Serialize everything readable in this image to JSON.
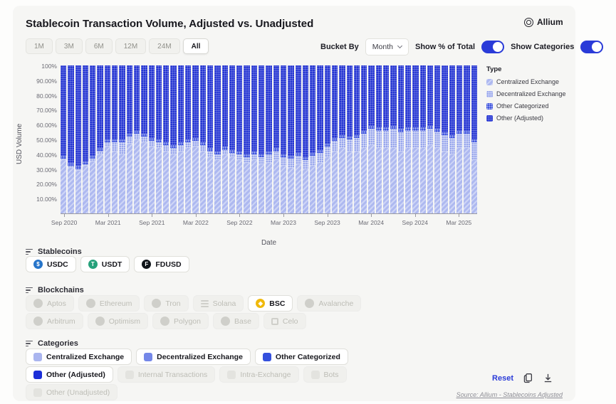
{
  "header": {
    "title": "Stablecoin Transaction Volume, Adjusted vs. Unadjusted",
    "brand": "Allium"
  },
  "controls": {
    "time_buckets": [
      {
        "label": "1M",
        "active": false
      },
      {
        "label": "3M",
        "active": false
      },
      {
        "label": "6M",
        "active": false
      },
      {
        "label": "12M",
        "active": false
      },
      {
        "label": "24M",
        "active": false
      },
      {
        "label": "All",
        "active": true
      }
    ],
    "bucket_by_label": "Bucket By",
    "bucket_by_value": "Month",
    "show_percent_label": "Show % of Total",
    "show_percent_on": true,
    "show_categories_label": "Show Categories",
    "show_categories_on": true,
    "accent_color": "#2a3bd8"
  },
  "chart_data": {
    "type": "bar",
    "stacked": true,
    "unit": "percent_of_total",
    "ylabel": "USD Volume",
    "xlabel": "Date",
    "ylim": [
      0,
      100
    ],
    "grid": false,
    "y_tick_labels": [
      "100%",
      "90.00%",
      "80.00%",
      "70.00%",
      "60.00%",
      "50.00%",
      "40.00%",
      "30.00%",
      "20.00%",
      "10.00%"
    ],
    "x_tick_labels": [
      "Sep 2020",
      "Mar 2021",
      "Sep 2021",
      "Mar 2022",
      "Sep 2022",
      "Mar 2023",
      "Sep 2023",
      "Mar 2024",
      "Sep 2024",
      "Mar 2025"
    ],
    "x_tick_indices": [
      0,
      6,
      12,
      18,
      24,
      30,
      36,
      42,
      48,
      54
    ],
    "categories": [
      "Sep 2020",
      "Oct 2020",
      "Nov 2020",
      "Dec 2020",
      "Jan 2021",
      "Feb 2021",
      "Mar 2021",
      "Apr 2021",
      "May 2021",
      "Jun 2021",
      "Jul 2021",
      "Aug 2021",
      "Sep 2021",
      "Oct 2021",
      "Nov 2021",
      "Dec 2021",
      "Jan 2022",
      "Feb 2022",
      "Mar 2022",
      "Apr 2022",
      "May 2022",
      "Jun 2022",
      "Jul 2022",
      "Aug 2022",
      "Sep 2022",
      "Oct 2022",
      "Nov 2022",
      "Dec 2022",
      "Jan 2023",
      "Feb 2023",
      "Mar 2023",
      "Apr 2023",
      "May 2023",
      "Jun 2023",
      "Jul 2023",
      "Aug 2023",
      "Sep 2023",
      "Oct 2023",
      "Nov 2023",
      "Dec 2023",
      "Jan 2024",
      "Feb 2024",
      "Mar 2024",
      "Apr 2024",
      "May 2024",
      "Jun 2024",
      "Jul 2024",
      "Aug 2024",
      "Sep 2024",
      "Oct 2024",
      "Nov 2024",
      "Dec 2024",
      "Jan 2025",
      "Feb 2025",
      "Mar 2025",
      "Apr 2025",
      "May 2025"
    ],
    "series": [
      {
        "name": "Centralized Exchange",
        "color": "#aeb9f0",
        "pattern": "diagonal",
        "values": [
          36,
          31,
          29,
          32,
          35,
          40,
          45,
          42,
          40,
          47,
          50,
          48,
          45,
          44,
          42,
          40,
          42,
          44,
          45,
          42,
          38,
          36,
          40,
          38,
          36,
          34,
          36,
          33,
          34,
          36,
          32,
          31,
          33,
          30,
          32,
          34,
          38,
          42,
          44,
          42,
          42,
          44,
          46,
          44,
          44,
          44,
          42,
          44,
          44,
          44,
          46,
          44,
          42,
          40,
          44,
          44,
          36
        ]
      },
      {
        "name": "Decentralized Exchange",
        "color": "#98a6ec",
        "pattern": "grid",
        "values": [
          1,
          1,
          1,
          1,
          2,
          2,
          3,
          6,
          8,
          5,
          4,
          4,
          4,
          4,
          4,
          4,
          4,
          4,
          4,
          4,
          4,
          4,
          3,
          3,
          4,
          4,
          4,
          5,
          6,
          6,
          6,
          6,
          6,
          6,
          7,
          7,
          7,
          7,
          7,
          8,
          9,
          10,
          11,
          12,
          12,
          13,
          13,
          12,
          12,
          12,
          11,
          11,
          11,
          11,
          10,
          10,
          12
        ]
      },
      {
        "name": "Other Categorized",
        "color": "#4056de",
        "pattern": "dots",
        "values": [
          2,
          2,
          2,
          2,
          2,
          2,
          2,
          2,
          2,
          2,
          2,
          2,
          2,
          2,
          2,
          2,
          2,
          2,
          2,
          2,
          2,
          2,
          2,
          2,
          2,
          2,
          2,
          2,
          2,
          2,
          2,
          2,
          2,
          2,
          2,
          2,
          2,
          2,
          2,
          2,
          2,
          2,
          2,
          2,
          2,
          2,
          2,
          2,
          2,
          2,
          2,
          2,
          2,
          2,
          2,
          2,
          2
        ]
      },
      {
        "name": "Other (Adjusted)",
        "color": "#2434d2",
        "pattern": "fine-grid",
        "values": [
          61,
          66,
          68,
          65,
          61,
          56,
          50,
          50,
          50,
          46,
          44,
          46,
          49,
          50,
          52,
          54,
          52,
          50,
          49,
          52,
          56,
          58,
          55,
          57,
          58,
          60,
          58,
          60,
          58,
          56,
          60,
          61,
          59,
          62,
          59,
          57,
          53,
          49,
          47,
          48,
          47,
          44,
          41,
          42,
          42,
          41,
          43,
          42,
          42,
          42,
          41,
          43,
          45,
          47,
          44,
          44,
          50
        ]
      }
    ],
    "legend": {
      "title": "Type",
      "position": "right"
    }
  },
  "filters": {
    "stablecoins": {
      "title": "Stablecoins",
      "rows": [
        [
          {
            "label": "USDC",
            "active": true,
            "icon": {
              "type": "circle",
              "bg": "#2775CA",
              "glyph": "$"
            }
          },
          {
            "label": "USDT",
            "active": true,
            "icon": {
              "type": "circle",
              "bg": "#26A17B",
              "glyph": "T"
            }
          },
          {
            "label": "FDUSD",
            "active": true,
            "icon": {
              "type": "circle",
              "bg": "#10151a",
              "glyph": "F"
            }
          }
        ]
      ]
    },
    "blockchains": {
      "title": "Blockchains",
      "rows": [
        [
          {
            "label": "Aptos",
            "active": false,
            "icon": {
              "type": "circle",
              "bg": "#cfcfca",
              "glyph": ""
            }
          },
          {
            "label": "Ethereum",
            "active": false,
            "icon": {
              "type": "circle",
              "bg": "#cfcfca",
              "glyph": ""
            }
          },
          {
            "label": "Tron",
            "active": false,
            "icon": {
              "type": "circle",
              "bg": "#cfcfca",
              "glyph": ""
            }
          },
          {
            "label": "Solana",
            "active": false,
            "icon": {
              "type": "lines"
            }
          },
          {
            "label": "BSC",
            "active": true,
            "icon": {
              "type": "circle",
              "bg": "#F0B90B",
              "glyph": "◆"
            }
          },
          {
            "label": "Avalanche",
            "active": false,
            "icon": {
              "type": "circle",
              "bg": "#cfcfca",
              "glyph": ""
            }
          }
        ],
        [
          {
            "label": "Arbitrum",
            "active": false,
            "icon": {
              "type": "circle",
              "bg": "#cfcfca",
              "glyph": ""
            }
          },
          {
            "label": "Optimism",
            "active": false,
            "icon": {
              "type": "circle",
              "bg": "#cfcfca",
              "glyph": ""
            }
          },
          {
            "label": "Polygon",
            "active": false,
            "icon": {
              "type": "circle",
              "bg": "#cfcfca",
              "glyph": ""
            }
          },
          {
            "label": "Base",
            "active": false,
            "icon": {
              "type": "circle",
              "bg": "#cfcfca",
              "glyph": ""
            }
          },
          {
            "label": "Celo",
            "active": false,
            "icon": {
              "type": "square"
            }
          }
        ]
      ]
    },
    "categories": {
      "title": "Categories",
      "rows": [
        [
          {
            "label": "Centralized Exchange",
            "active": true,
            "swatch": "#aab5ef"
          },
          {
            "label": "Decentralized Exchange",
            "active": true,
            "swatch": "#7487e8"
          },
          {
            "label": "Other Categorized",
            "active": true,
            "swatch": "#3450dd"
          }
        ],
        [
          {
            "label": "Other (Adjusted)",
            "active": true,
            "swatch": "#1b2ed8"
          },
          {
            "label": "Internal Transactions",
            "active": false,
            "swatch": "#e3e3df"
          },
          {
            "label": "Intra-Exchange",
            "active": false,
            "swatch": "#e3e3df"
          },
          {
            "label": "Bots",
            "active": false,
            "swatch": "#e3e3df"
          }
        ],
        [
          {
            "label": "Other (Unadjusted)",
            "active": false,
            "swatch": "#e3e3df"
          }
        ]
      ]
    }
  },
  "footer": {
    "reset_label": "Reset",
    "source_text": "Source: Allium - Stablecoins Adjusted"
  }
}
